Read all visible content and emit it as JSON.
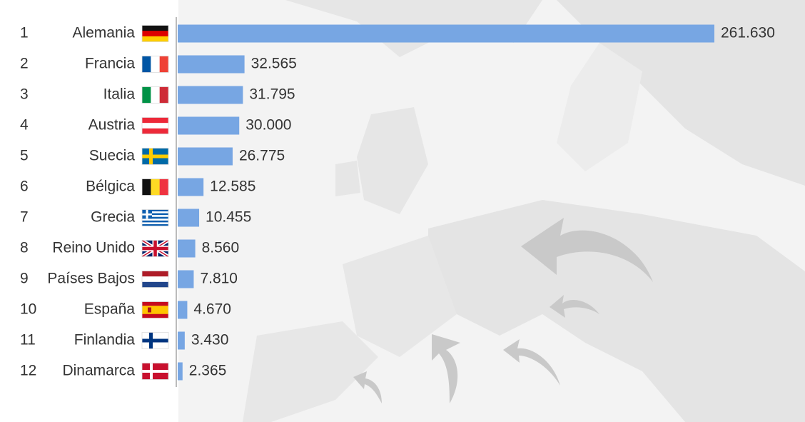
{
  "chart_data": {
    "type": "bar",
    "orientation": "horizontal",
    "ranks": [
      1,
      2,
      3,
      4,
      5,
      6,
      7,
      8,
      9,
      10,
      11,
      12
    ],
    "categories": [
      "Alemania",
      "Francia",
      "Italia",
      "Austria",
      "Suecia",
      "Bélgica",
      "Grecia",
      "Reino Unido",
      "Países Bajos",
      "España",
      "Finlandia",
      "Dinamarca"
    ],
    "values": [
      261630,
      32565,
      31795,
      30000,
      26775,
      12585,
      10455,
      8560,
      7810,
      4670,
      3430,
      2365
    ],
    "value_labels": [
      "261.630",
      "32.565",
      "31.795",
      "30.000",
      "26.775",
      "12.585",
      "10.455",
      "8.560",
      "7.810",
      "4.670",
      "3.430",
      "2.365"
    ],
    "color": "#77a6e3"
  }
}
